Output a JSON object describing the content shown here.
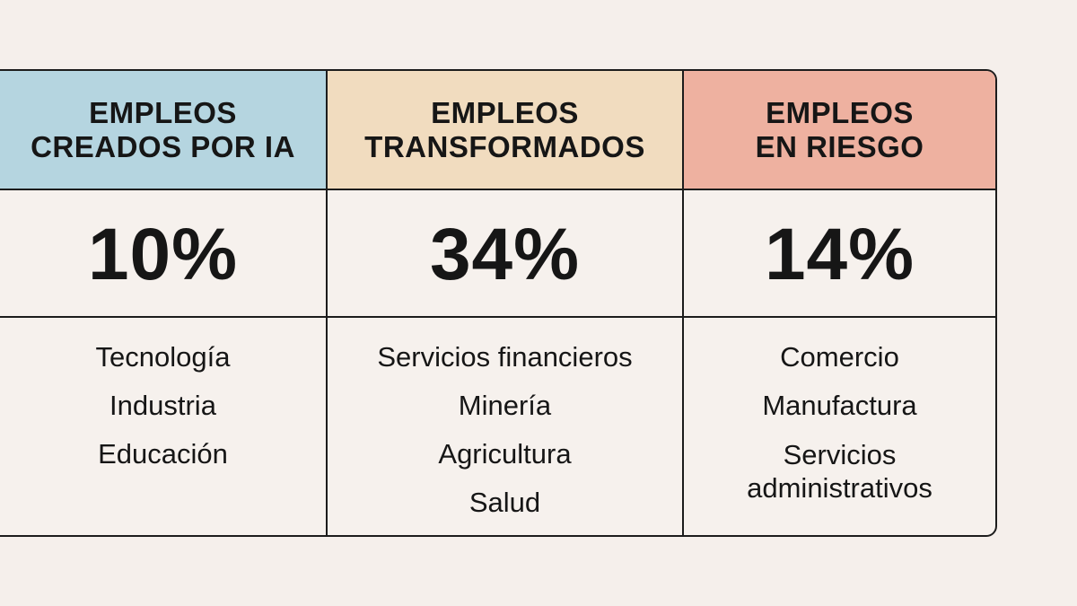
{
  "columns": [
    {
      "header_line1": "EMPLEOS",
      "header_line2": "CREADOS POR IA",
      "header_color": "#b5d5e0",
      "percentage": "10%",
      "items": [
        "Tecnología",
        "Industria",
        "Educación"
      ]
    },
    {
      "header_line1": "EMPLEOS",
      "header_line2": "TRANSFORMADOS",
      "header_color": "#f1dcbf",
      "percentage": "34%",
      "items": [
        "Servicios financieros",
        "Minería",
        "Agricultura",
        "Salud"
      ]
    },
    {
      "header_line1": "EMPLEOS",
      "header_line2": "EN RIESGO",
      "header_color": "#eeb1a0",
      "percentage": "14%",
      "items": [
        "Comercio",
        "Manufactura"
      ],
      "wrapped_item_line1": "Servicios",
      "wrapped_item_line2": "administrativos"
    }
  ]
}
